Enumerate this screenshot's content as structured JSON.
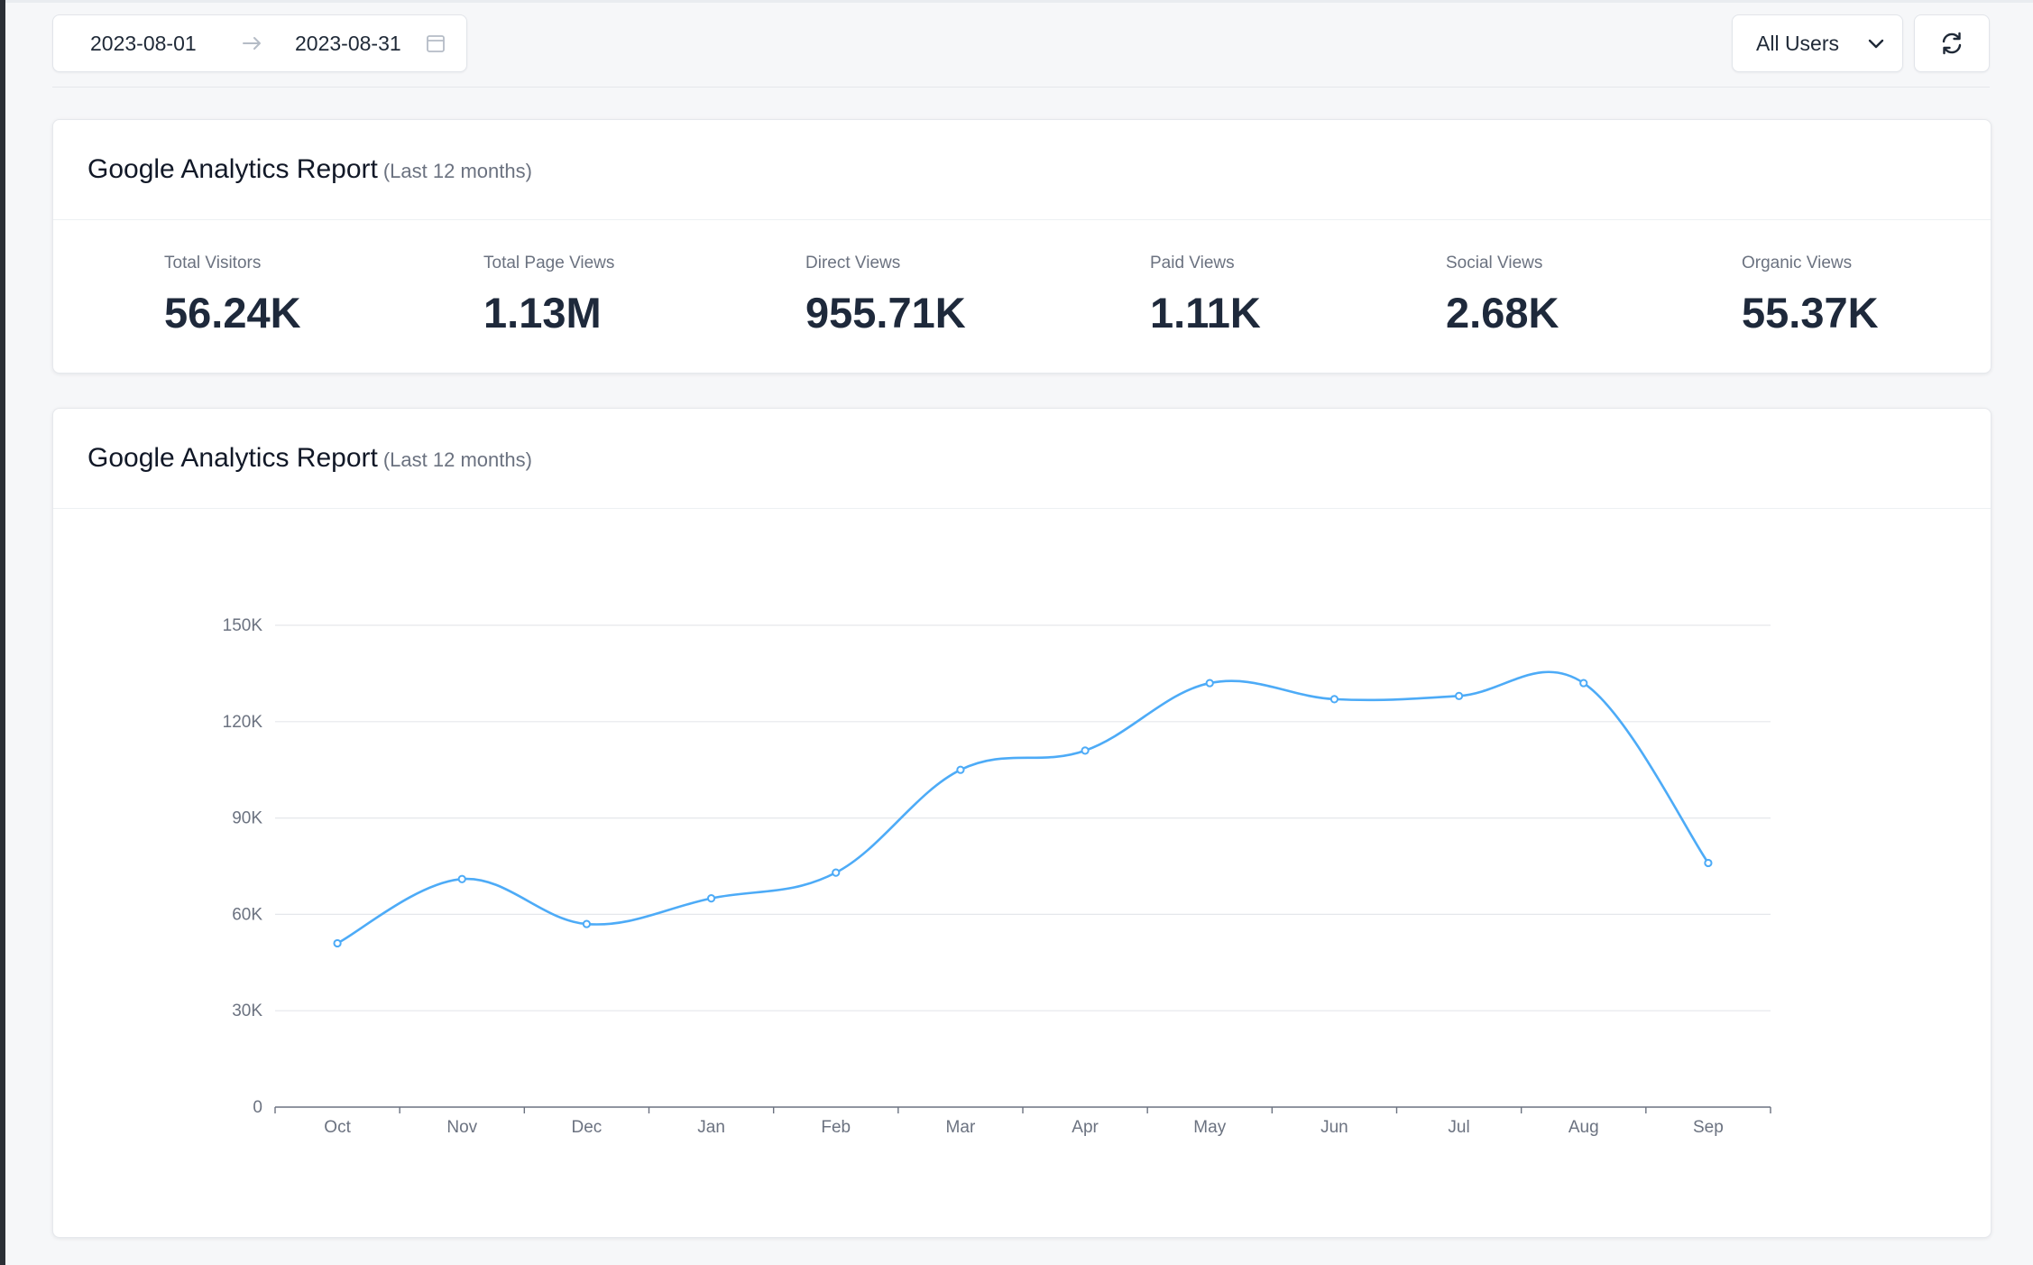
{
  "toolbar": {
    "date_start": "2023-08-01",
    "date_end": "2023-08-31",
    "user_filter": "All Users",
    "icons": {
      "arrow": "arrow-right-icon",
      "calendar": "calendar-icon",
      "chevron": "chevron-down-icon",
      "refresh": "refresh-icon"
    }
  },
  "stats_card": {
    "title": "Google Analytics Report",
    "subtitle": "(Last 12 months)",
    "stats": [
      {
        "label": "Total Visitors",
        "value": "56.24K"
      },
      {
        "label": "Total Page Views",
        "value": "1.13M"
      },
      {
        "label": "Direct Views",
        "value": "955.71K"
      },
      {
        "label": "Paid Views",
        "value": "1.11K"
      },
      {
        "label": "Social Views",
        "value": "2.68K"
      },
      {
        "label": "Organic Views",
        "value": "55.37K"
      }
    ]
  },
  "chart_card": {
    "title": "Google Analytics Report",
    "subtitle": "(Last 12 months)"
  },
  "colors": {
    "line": "#4dabf7",
    "grid": "#e5e7eb",
    "axis": "#6b7280"
  },
  "chart_data": {
    "type": "line",
    "smooth": true,
    "categories": [
      "Oct",
      "Nov",
      "Dec",
      "Jan",
      "Feb",
      "Mar",
      "Apr",
      "May",
      "Jun",
      "Jul",
      "Aug",
      "Sep"
    ],
    "series": [
      {
        "values": [
          51000,
          71000,
          57000,
          65000,
          73000,
          105000,
          111000,
          132000,
          127000,
          128000,
          132000,
          76000
        ]
      }
    ],
    "y_ticks": [
      "0",
      "30K",
      "60K",
      "90K",
      "120K",
      "150K"
    ],
    "ylim": [
      0,
      150000
    ],
    "grid": true,
    "legend": false
  }
}
